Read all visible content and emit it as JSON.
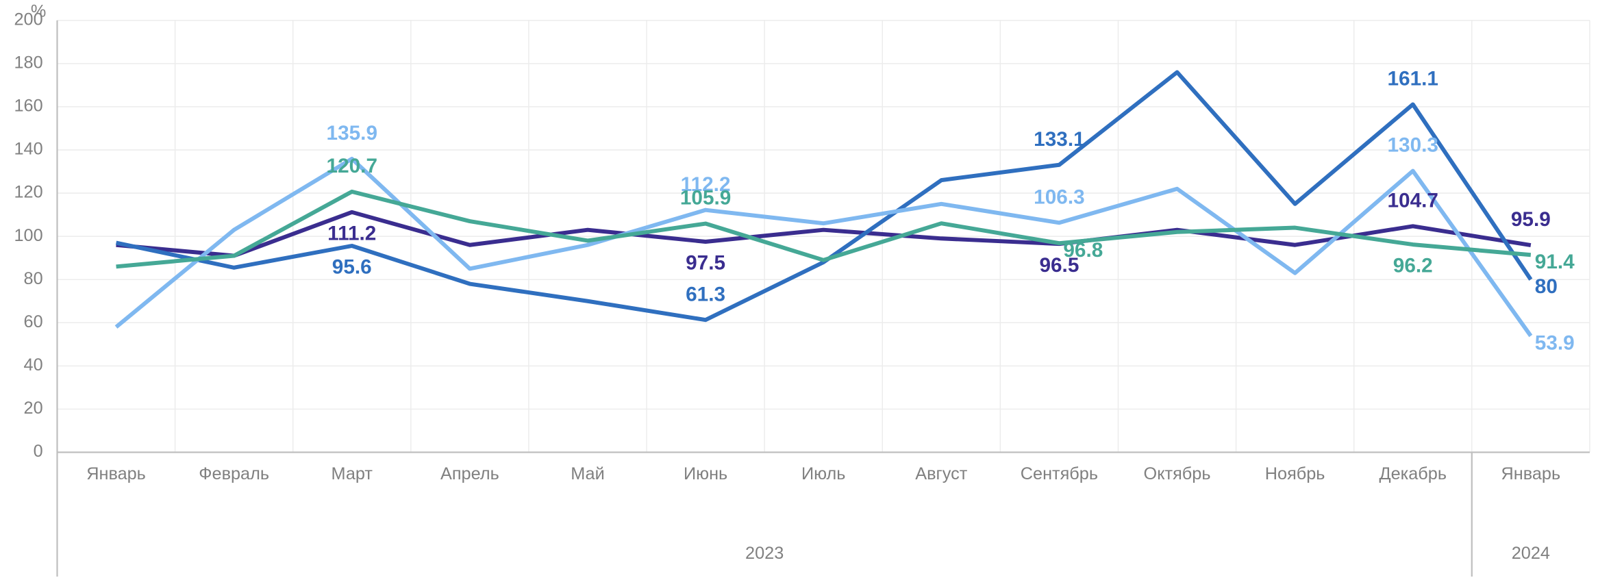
{
  "chart_data": {
    "type": "line",
    "y_label": "%",
    "categories": [
      "Январь",
      "Февраль",
      "Март",
      "Апрель",
      "Май",
      "Июнь",
      "Июль",
      "Август",
      "Сентябрь",
      "Октябрь",
      "Ноябрь",
      "Декабрь",
      "Январь"
    ],
    "groups": [
      {
        "label": "2023",
        "span": 12
      },
      {
        "label": "2024",
        "span": 1
      }
    ],
    "ylim": [
      0,
      200
    ],
    "yticks": [
      0,
      20,
      40,
      60,
      80,
      100,
      120,
      140,
      160,
      180,
      200
    ],
    "grid": true,
    "series": [
      {
        "color": "#3a2d8f",
        "values": [
          96,
          91,
          111.2,
          96,
          103,
          97.5,
          103,
          99,
          96.5,
          103,
          96,
          104.7,
          95.9
        ],
        "value_labels": [
          null,
          null,
          "111.2",
          null,
          null,
          "97.5",
          null,
          null,
          "96.5",
          null,
          null,
          "104.7",
          "95.9"
        ]
      },
      {
        "color": "#2f6fbf",
        "values": [
          97,
          85.5,
          95.6,
          78,
          70,
          61.3,
          88,
          126,
          133.1,
          176,
          115,
          161.1,
          80
        ],
        "value_labels": [
          null,
          null,
          "95.6",
          null,
          null,
          "61.3",
          null,
          null,
          "133.1",
          null,
          null,
          "161.1",
          "80"
        ]
      },
      {
        "color": "#7fb8f0",
        "values": [
          58,
          103,
          135.9,
          85,
          96,
          112.2,
          106,
          115,
          106.3,
          122,
          83,
          130.3,
          53.9
        ],
        "value_labels": [
          null,
          null,
          "135.9",
          null,
          null,
          "112.2",
          null,
          null,
          "106.3",
          null,
          null,
          "130.3",
          "53.9"
        ]
      },
      {
        "color": "#45a896",
        "values": [
          86,
          91,
          120.7,
          107,
          98,
          105.9,
          89,
          106,
          96.8,
          102,
          104,
          96.2,
          91.4
        ],
        "value_labels": [
          null,
          null,
          "120.7",
          null,
          null,
          "105.9",
          null,
          null,
          "96.8",
          null,
          null,
          "96.2",
          "91.4"
        ]
      }
    ]
  }
}
